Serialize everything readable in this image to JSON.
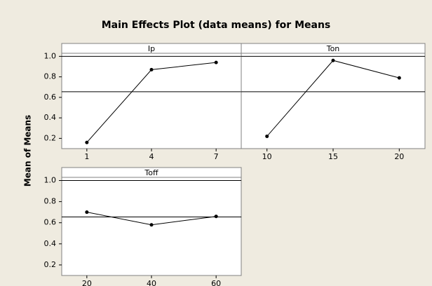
{
  "title": "Main Effects Plot (data means) for Means",
  "ylabel": "Mean of Means",
  "chart_data": [
    {
      "type": "line",
      "title": "Ip",
      "categories": [
        "1",
        "4",
        "7"
      ],
      "values": [
        0.16,
        0.87,
        0.94
      ],
      "color": "#000000",
      "reference_line": 0.655,
      "ylim": [
        0.1,
        1.03
      ],
      "yticks": [
        {
          "value": 1,
          "label": "1.0"
        },
        0.8,
        0.6,
        0.4,
        0.2
      ]
    },
    {
      "type": "line",
      "title": "Ton",
      "categories": [
        "10",
        "15",
        "20"
      ],
      "values": [
        0.22,
        0.96,
        0.79
      ],
      "color": "#000000",
      "reference_line": 0.655,
      "ylim": [
        0.1,
        1.03
      ]
    },
    {
      "type": "line",
      "title": "Toff",
      "categories": [
        "20",
        "40",
        "60"
      ],
      "values": [
        0.7,
        0.58,
        0.66
      ],
      "color": "#000000",
      "reference_line": 0.655,
      "ylim": [
        0.1,
        1.03
      ],
      "yticks": [
        {
          "value": 1,
          "label": "1.0"
        },
        0.8,
        0.6,
        0.4,
        0.2
      ]
    }
  ]
}
